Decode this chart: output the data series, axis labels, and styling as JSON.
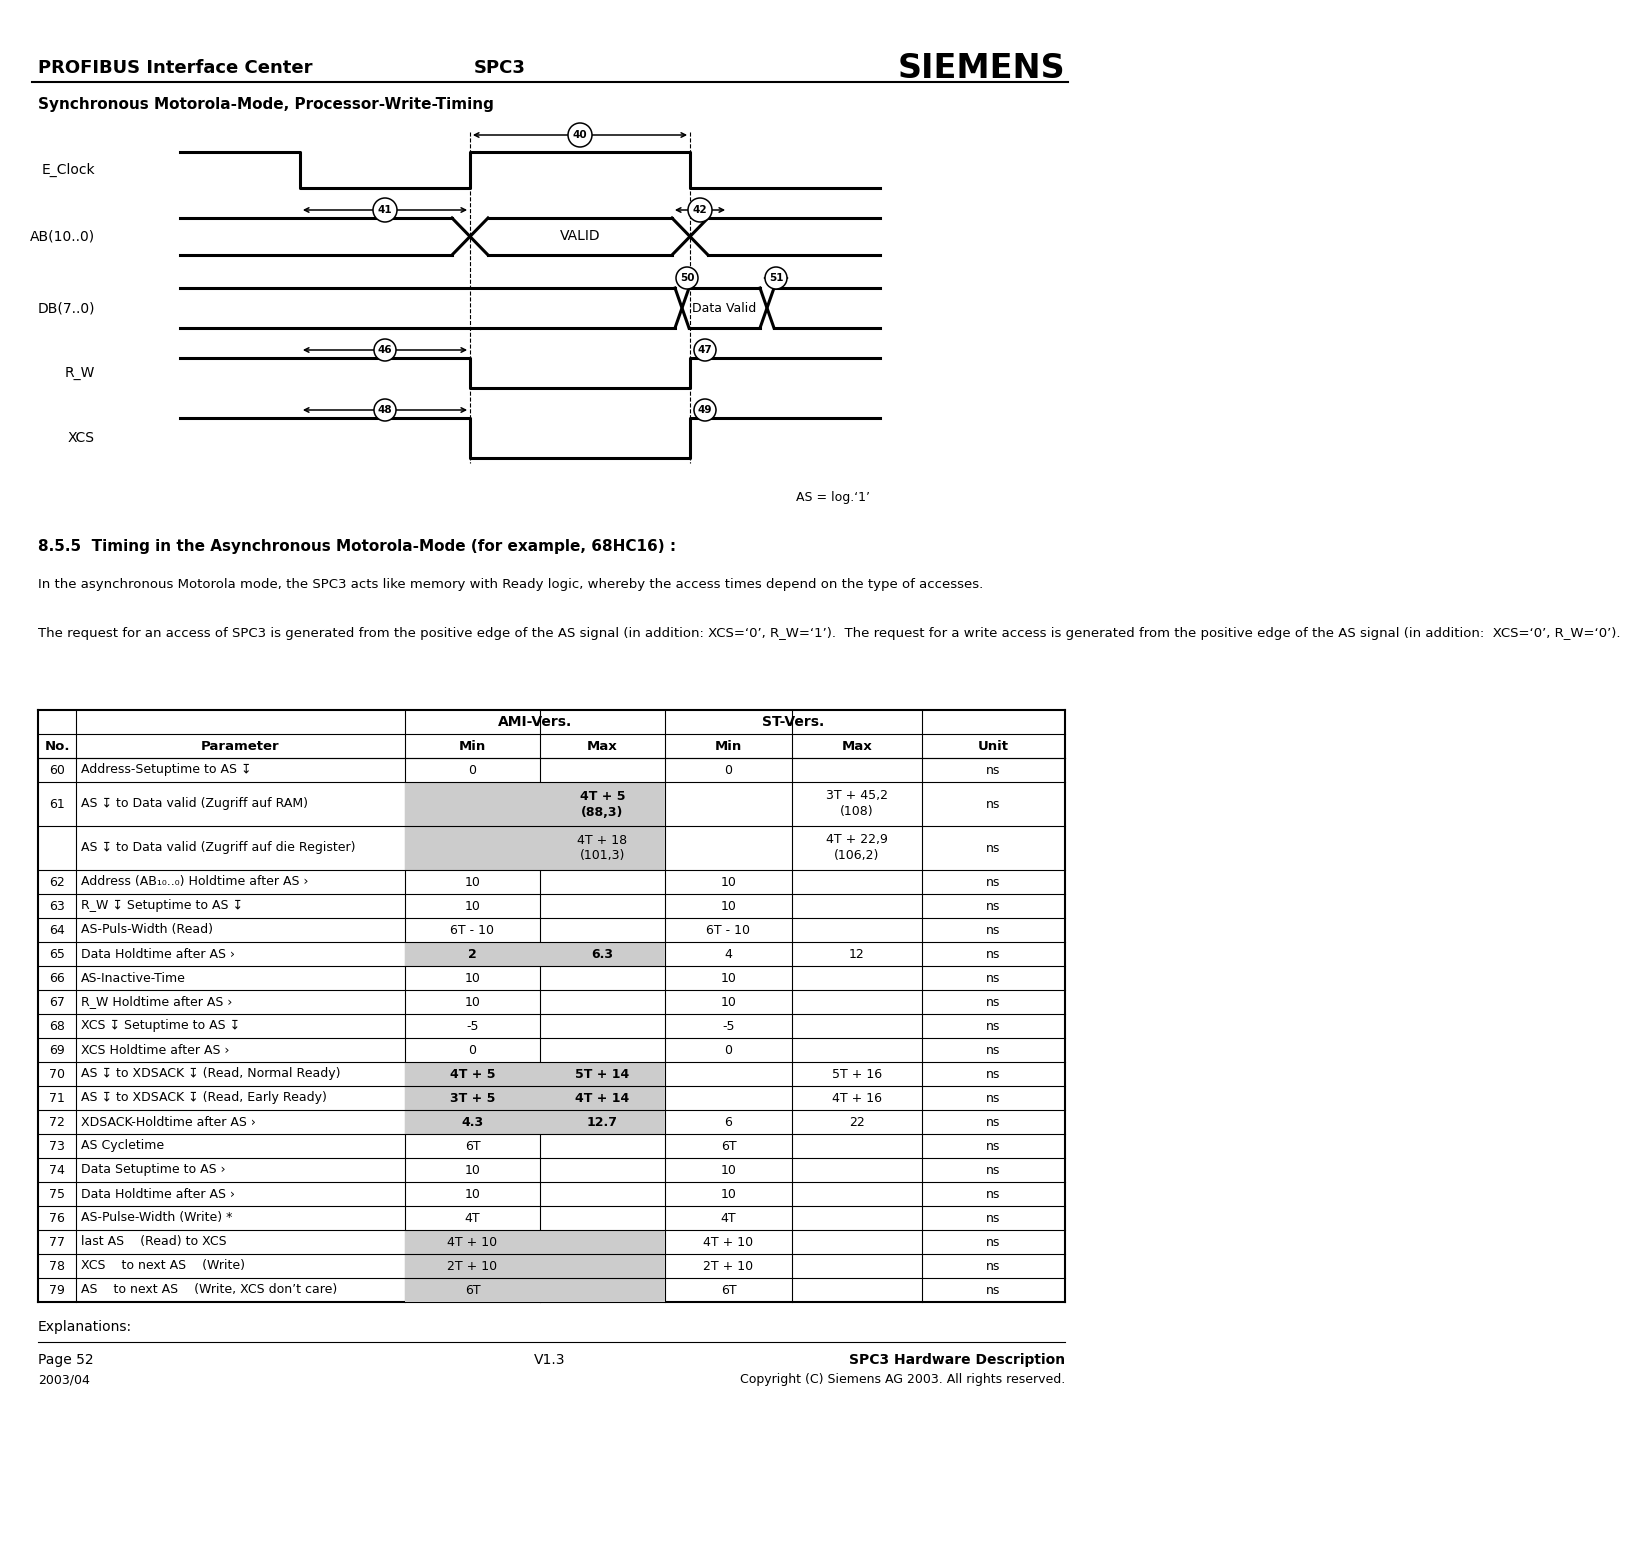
{
  "title_header": "PROFIBUS Interface Center",
  "title_center": "SPC3",
  "title_right": "SIEMENS",
  "diagram_title": "Synchronous Motorola-Mode, Processor-Write-Timing",
  "as_label": "AS = log.‘1’",
  "section_title": "8.5.5  Timing in the Asynchronous Motorola-Mode (for example, 68HC16) :",
  "section_text1": "In the asynchronous Motorola mode, the SPC3 acts like memory with Ready logic, whereby the access times depend on the type of accesses.",
  "section_text2": "The request for an access of SPC3 is generated from the positive edge of the AS signal (in addition: XCS=‘0’, R_W=‘1’).  The request for a write access is generated from the positive edge of the AS signal (in addition:  XCS=‘0’, R_W=‘0’).",
  "table_rows": [
    [
      "60",
      "Address-Setuptime to AS ↧",
      "0",
      "",
      "0",
      "",
      "ns",
      false,
      false
    ],
    [
      "61",
      "AS ↧ to Data valid (Zugriff auf RAM)",
      "",
      "4T + 5\n(88,3)",
      "",
      "3T + 45,2\n(108)",
      "ns",
      true,
      true
    ],
    [
      "",
      "AS ↧ to Data valid (Zugriff auf die Register)",
      "",
      "4T + 18\n(101,3)",
      "",
      "4T + 22,9\n(106,2)",
      "ns",
      true,
      false
    ],
    [
      "62",
      "Address (AB₁₀..₀) Holdtime after AS ›",
      "10",
      "",
      "10",
      "",
      "ns",
      false,
      false
    ],
    [
      "63",
      "R_W ↧ Setuptime to AS ↧",
      "10",
      "",
      "10",
      "",
      "ns",
      false,
      false
    ],
    [
      "64",
      "AS-Puls-Width (Read)",
      "6T - 10",
      "",
      "6T - 10",
      "",
      "ns",
      false,
      false
    ],
    [
      "65",
      "Data Holdtime after AS ›",
      "2",
      "6.3",
      "4",
      "12",
      "ns",
      true,
      true
    ],
    [
      "66",
      "AS-Inactive-Time",
      "10",
      "",
      "10",
      "",
      "ns",
      false,
      false
    ],
    [
      "67",
      "R_W Holdtime after AS ›",
      "10",
      "",
      "10",
      "",
      "ns",
      false,
      false
    ],
    [
      "68",
      "XCS ↧ Setuptime to AS ↧",
      "-5",
      "",
      "-5",
      "",
      "ns",
      false,
      false
    ],
    [
      "69",
      "XCS Holdtime after AS ›",
      "0",
      "",
      "0",
      "",
      "ns",
      false,
      false
    ],
    [
      "70",
      "AS ↧ to XDSACK ↧ (Read, Normal Ready)",
      "4T + 5",
      "5T + 14",
      "",
      "5T + 16",
      "ns",
      true,
      true
    ],
    [
      "71",
      "AS ↧ to XDSACK ↧ (Read, Early Ready)",
      "3T + 5",
      "4T + 14",
      "",
      "4T + 16",
      "ns",
      true,
      true
    ],
    [
      "72",
      "XDSACK-Holdtime after AS ›",
      "4.3",
      "12.7",
      "6",
      "22",
      "ns",
      true,
      true
    ],
    [
      "73",
      "AS Cycletime",
      "6T",
      "",
      "6T",
      "",
      "ns",
      false,
      false
    ],
    [
      "74",
      "Data Setuptime to AS ›",
      "10",
      "",
      "10",
      "",
      "ns",
      false,
      false
    ],
    [
      "75",
      "Data Holdtime after AS ›",
      "10",
      "",
      "10",
      "",
      "ns",
      false,
      false
    ],
    [
      "76",
      "AS-Pulse-Width (Write) *",
      "4T",
      "",
      "4T",
      "",
      "ns",
      false,
      false
    ],
    [
      "77",
      "last AS    (Read) to XCS",
      "4T + 10",
      "",
      "4T + 10",
      "",
      "ns",
      true,
      false
    ],
    [
      "78",
      "XCS    to next AS    (Write)",
      "2T + 10",
      "",
      "2T + 10",
      "",
      "ns",
      true,
      false
    ],
    [
      "79",
      "AS    to next AS    (Write, XCS don’t care)",
      "6T",
      "",
      "6T",
      "",
      "ns",
      true,
      false
    ]
  ],
  "explanations_label": "Explanations:",
  "footer_left": "Page 52",
  "footer_center": "V1.3",
  "footer_right": "SPC3 Hardware Description",
  "footer_copy": "2003/04",
  "footer_copy2": "Copyright (C) Siemens AG 2003. All rights reserved."
}
